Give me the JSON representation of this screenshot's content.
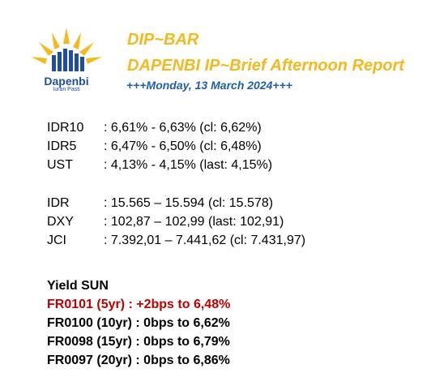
{
  "logo": {
    "name": "Dapenbi",
    "tagline": "Iuran Pasti"
  },
  "header": {
    "title": "DIP~BAR",
    "subtitle": "DAPENBI IP~Brief Afternoon Report",
    "date": "+++Monday, 13 March 2024+++"
  },
  "rates_block_1": [
    {
      "label": "IDR10",
      "value": ": 6,61% - 6,63% (cl: 6,62%)"
    },
    {
      "label": "IDR5",
      "value": ": 6,47% - 6,50% (cl: 6,48%)"
    },
    {
      "label": "UST",
      "value": ": 4,13% - 4,15% (last: 4,15%)"
    }
  ],
  "rates_block_2": [
    {
      "label": "IDR",
      "value": ": 15.565 – 15.594 (cl: 15.578)"
    },
    {
      "label": "DXY",
      "value": ": 102,87 – 102,99 (last: 102,91)"
    },
    {
      "label": "JCI",
      "value": ": 7.392,01 – 7.441,62 (cl: 7.431,97)"
    }
  ],
  "yield": {
    "title": "Yield SUN",
    "rows": [
      {
        "text": "FR0101 (5yr)   : +2bps to 6,48%"
      },
      {
        "text": "FR0100 (10yr) : 0bps to 6,62%"
      },
      {
        "text": "FR0098 (15yr) : 0bps to 6,79%"
      },
      {
        "text": "FR0097 (20yr) : 0bps to 6,86%"
      }
    ],
    "highlight_color": "#c00000"
  },
  "colors": {
    "brand_yellow": "#f4b91f",
    "brand_blue": "#1f4e9c",
    "date_blue": "#1f5fa8"
  }
}
